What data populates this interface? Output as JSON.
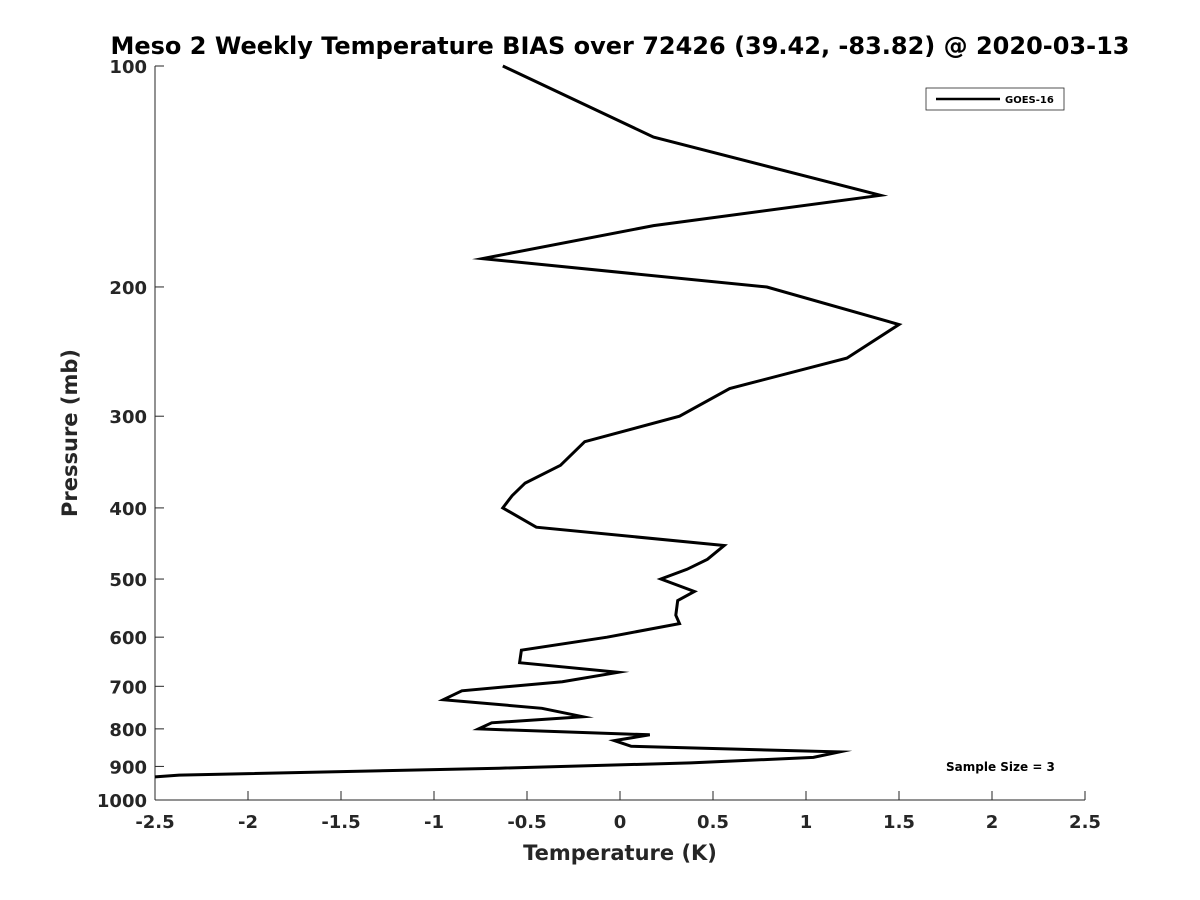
{
  "chart_data": {
    "type": "line",
    "title": "Meso 2 Weekly Temperature BIAS over 72426 (39.42, -83.82) @ 2020-03-13",
    "xlabel": "Temperature (K)",
    "ylabel": "Pressure (mb)",
    "xlim": [
      -2.5,
      2.5
    ],
    "ylim": [
      100,
      1000
    ],
    "y_scale": "log",
    "y_reversed": true,
    "x_ticks": [
      -2.5,
      -2,
      -1.5,
      -1,
      -0.5,
      0,
      0.5,
      1,
      1.5,
      2,
      2.5
    ],
    "x_tick_labels": [
      "-2.5",
      "-2",
      "-1.5",
      "-1",
      "-0.5",
      "0",
      "0.5",
      "1",
      "1.5",
      "2",
      "2.5"
    ],
    "y_ticks": [
      100,
      200,
      300,
      400,
      500,
      600,
      700,
      800,
      900,
      1000
    ],
    "y_tick_labels": [
      "100",
      "200",
      "300",
      "400",
      "500",
      "600",
      "700",
      "800",
      "900",
      "1000"
    ],
    "grid": false,
    "legend_position": "top-right",
    "annotation": "Sample Size = 3",
    "series": [
      {
        "name": "GOES-16",
        "color": "#000000",
        "points": [
          {
            "x": -0.63,
            "p": 100
          },
          {
            "x": 0.18,
            "p": 125
          },
          {
            "x": 1.4,
            "p": 150
          },
          {
            "x": 0.18,
            "p": 165
          },
          {
            "x": -0.74,
            "p": 183
          },
          {
            "x": 0.79,
            "p": 200
          },
          {
            "x": 1.5,
            "p": 225
          },
          {
            "x": 1.22,
            "p": 250
          },
          {
            "x": 0.59,
            "p": 275
          },
          {
            "x": 0.32,
            "p": 300
          },
          {
            "x": -0.19,
            "p": 325
          },
          {
            "x": -0.32,
            "p": 350
          },
          {
            "x": -0.51,
            "p": 370
          },
          {
            "x": -0.58,
            "p": 385
          },
          {
            "x": -0.63,
            "p": 400
          },
          {
            "x": -0.45,
            "p": 425
          },
          {
            "x": 0.56,
            "p": 450
          },
          {
            "x": 0.47,
            "p": 470
          },
          {
            "x": 0.36,
            "p": 485
          },
          {
            "x": 0.22,
            "p": 500
          },
          {
            "x": 0.4,
            "p": 520
          },
          {
            "x": 0.31,
            "p": 535
          },
          {
            "x": 0.3,
            "p": 560
          },
          {
            "x": 0.32,
            "p": 575
          },
          {
            "x": -0.07,
            "p": 600
          },
          {
            "x": -0.53,
            "p": 625
          },
          {
            "x": -0.54,
            "p": 650
          },
          {
            "x": -0.01,
            "p": 670
          },
          {
            "x": -0.31,
            "p": 690
          },
          {
            "x": -0.85,
            "p": 710
          },
          {
            "x": -0.95,
            "p": 730
          },
          {
            "x": -0.42,
            "p": 750
          },
          {
            "x": -0.2,
            "p": 770
          },
          {
            "x": -0.69,
            "p": 785
          },
          {
            "x": -0.76,
            "p": 800
          },
          {
            "x": 0.16,
            "p": 815
          },
          {
            "x": -0.03,
            "p": 830
          },
          {
            "x": 0.06,
            "p": 845
          },
          {
            "x": 1.18,
            "p": 860
          },
          {
            "x": 1.04,
            "p": 875
          },
          {
            "x": 0.38,
            "p": 890
          },
          {
            "x": -0.65,
            "p": 905
          },
          {
            "x": -2.37,
            "p": 925
          },
          {
            "x": -2.5,
            "p": 930
          }
        ]
      }
    ]
  }
}
